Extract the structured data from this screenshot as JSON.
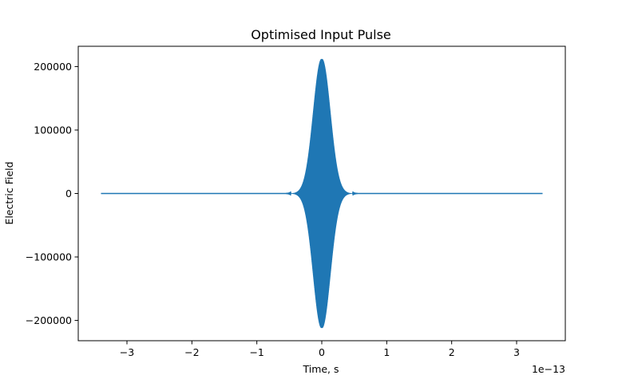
{
  "chart_data": {
    "type": "line",
    "title": "Optimised Input Pulse",
    "xlabel": "Time, s",
    "ylabel": "Electric Field",
    "x_scale_note": "1e−13",
    "xlim": [
      -3.75,
      3.75
    ],
    "ylim": [
      -232000,
      232000
    ],
    "x_ticks": [
      -3,
      -2,
      -1,
      0,
      1,
      2,
      3
    ],
    "x_tick_labels": [
      "−3",
      "−2",
      "−1",
      "0",
      "1",
      "2",
      "3"
    ],
    "y_ticks": [
      -200000,
      -100000,
      0,
      100000,
      200000
    ],
    "y_tick_labels": [
      "−200000",
      "−100000",
      "0",
      "100000",
      "200000"
    ],
    "grid": false,
    "legend": "none",
    "line_color": "#1f77b4",
    "series": [
      {
        "x_range": [
          -3.4,
          3.4
        ],
        "envelope": "gaussian",
        "peak_amplitude": 212000,
        "center": 0,
        "fwhm": 0.3,
        "carrier": "oscillating",
        "envelope_points": {
          "x": [
            -3.4,
            -0.7,
            -0.6,
            -0.5,
            -0.4,
            -0.3,
            -0.2,
            -0.1,
            0,
            0.1,
            0.2,
            0.3,
            0.4,
            0.5,
            0.6,
            0.7,
            3.4
          ],
          "y": [
            0,
            1000,
            3000,
            10000,
            26000,
            58000,
            103000,
            153000,
            212000,
            153000,
            103000,
            58000,
            26000,
            10000,
            3000,
            1000,
            0
          ]
        }
      }
    ]
  }
}
